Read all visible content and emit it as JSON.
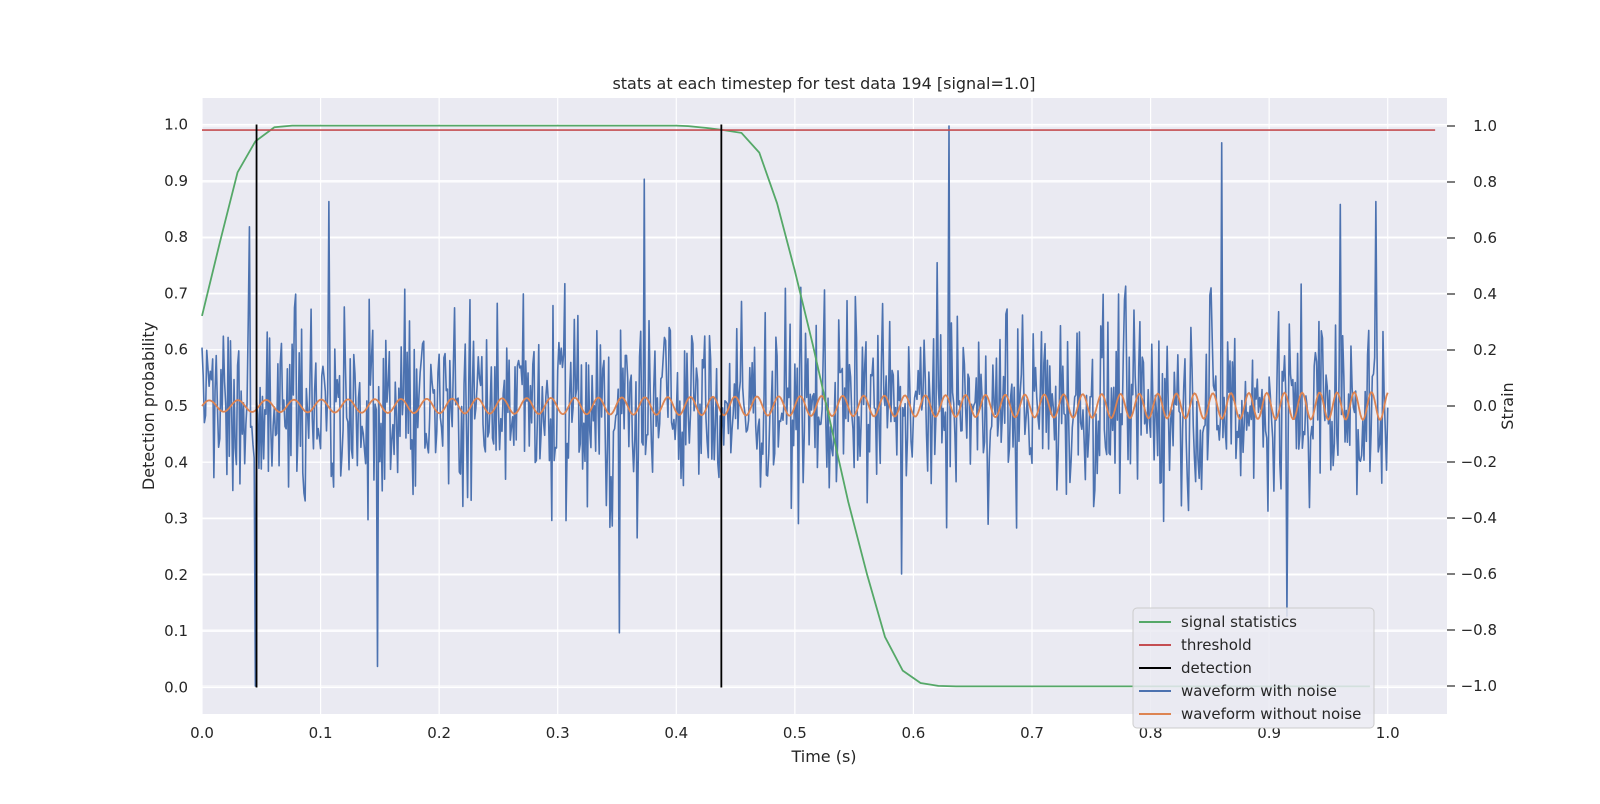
{
  "chart_data": {
    "type": "line",
    "title": "stats at each timestep for test data 194 [signal=1.0]",
    "xlabel": "Time (s)",
    "ylabel": "Detection probability",
    "y2label": "Strain",
    "xlim": [
      0.0,
      1.05
    ],
    "ylim": [
      -0.047,
      1.047
    ],
    "y2lim": [
      -1.1,
      1.1
    ],
    "xticks": [
      "0.0",
      "0.1",
      "0.2",
      "0.3",
      "0.4",
      "0.5",
      "0.6",
      "0.7",
      "0.8",
      "0.9",
      "1.0"
    ],
    "yticks": [
      "0.0",
      "0.1",
      "0.2",
      "0.3",
      "0.4",
      "0.5",
      "0.6",
      "0.7",
      "0.8",
      "0.9",
      "1.0"
    ],
    "y2ticks": [
      "−1.0",
      "−0.8",
      "−0.6",
      "−0.4",
      "−0.2",
      "0.0",
      "0.2",
      "0.4",
      "0.6",
      "0.8",
      "1.0"
    ],
    "grid": true,
    "legend_position": "lower-right",
    "colors": {
      "background": "#eaeaf2",
      "grid": "#ffffff",
      "signal": "#55a868",
      "threshold": "#c44e52",
      "detection": "#000000",
      "noisy": "#4c72b0",
      "clean": "#dd8452"
    },
    "legend": [
      "signal statistics",
      "threshold",
      "detection",
      "waveform with noise",
      "waveform without noise"
    ],
    "series": [
      {
        "name": "signal statistics",
        "axis": "left",
        "x": [
          0.0,
          0.015,
          0.03,
          0.045,
          0.061,
          0.076,
          0.091,
          0.106,
          0.2,
          0.3,
          0.4,
          0.41,
          0.425,
          0.44,
          0.455,
          0.47,
          0.485,
          0.5,
          0.515,
          0.53,
          0.545,
          0.561,
          0.576,
          0.591,
          0.606,
          0.621,
          0.636,
          0.7,
          0.8,
          0.9,
          0.985
        ],
        "y": [
          0.66,
          0.79,
          0.915,
          0.97,
          0.995,
          0.998,
          0.998,
          0.998,
          0.998,
          0.998,
          0.998,
          0.997,
          0.994,
          0.99,
          0.985,
          0.95,
          0.86,
          0.74,
          0.61,
          0.47,
          0.33,
          0.2,
          0.09,
          0.03,
          0.008,
          0.003,
          0.002,
          0.002,
          0.002,
          0.002,
          0.002
        ]
      },
      {
        "name": "threshold",
        "axis": "left",
        "x": [
          0.0,
          1.04
        ],
        "y": [
          0.99,
          0.99
        ]
      },
      {
        "name": "detection",
        "axis": "left",
        "x": [
          0.046,
          0.438
        ],
        "ymin": 0.0,
        "ymax": 1.0
      },
      {
        "name": "waveform with noise",
        "axis": "right",
        "x_start": 0.0,
        "x_end": 1.0,
        "noise_std": 0.32,
        "peaks": [
          {
            "x": 0.04,
            "y": -1.0
          },
          {
            "x": 0.04,
            "y": 0.64
          },
          {
            "x": 0.045,
            "y": -1.0
          },
          {
            "x": 0.107,
            "y": 0.73
          },
          {
            "x": 0.148,
            "y": -0.93
          },
          {
            "x": 0.373,
            "y": 0.81
          },
          {
            "x": 0.352,
            "y": -0.81
          },
          {
            "x": 0.63,
            "y": 1.0
          },
          {
            "x": 0.59,
            "y": -0.6
          },
          {
            "x": 0.86,
            "y": 0.94
          },
          {
            "x": 0.915,
            "y": -0.75
          },
          {
            "x": 0.96,
            "y": 0.72
          },
          {
            "x": 0.99,
            "y": 0.73
          }
        ]
      },
      {
        "name": "waveform without noise",
        "axis": "right",
        "x_start": 0.0,
        "x_end": 1.0,
        "amplitude_start": 0.02,
        "amplitude_end": 0.05,
        "cycles": 48
      }
    ]
  }
}
